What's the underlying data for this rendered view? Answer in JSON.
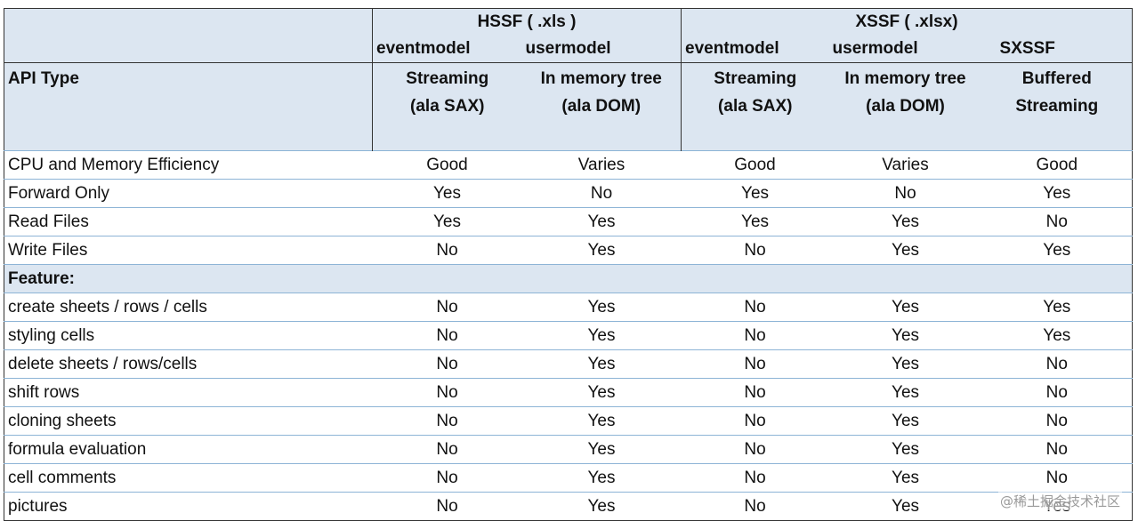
{
  "header": {
    "hssf_label": "HSSF ( .xls )",
    "xssf_label": "XSSF ( .xlsx)",
    "sub_labels": [
      "eventmodel",
      "usermodel",
      "eventmodel",
      "usermodel",
      "SXSSF"
    ],
    "api_type_label": "API Type",
    "api_types": [
      [
        "Streaming",
        "(ala SAX)"
      ],
      [
        "In memory tree",
        "(ala DOM)"
      ],
      [
        "Streaming",
        "(ala SAX)"
      ],
      [
        "In memory tree",
        "(ala DOM)"
      ],
      [
        "Buffered",
        "Streaming"
      ]
    ]
  },
  "rows": [
    {
      "label": "CPU and Memory Efficiency",
      "values": [
        "Good",
        "Varies",
        "Good",
        "Varies",
        "Good"
      ]
    },
    {
      "label": "Forward Only",
      "values": [
        "Yes",
        "No",
        "Yes",
        "No",
        "Yes"
      ]
    },
    {
      "label": "Read Files",
      "values": [
        "Yes",
        "Yes",
        "Yes",
        "Yes",
        "No"
      ]
    },
    {
      "label": "Write Files",
      "values": [
        "No",
        "Yes",
        "No",
        "Yes",
        "Yes"
      ]
    }
  ],
  "feature_label": "Feature:",
  "features": [
    {
      "label": "create sheets / rows / cells",
      "values": [
        "No",
        "Yes",
        "No",
        "Yes",
        "Yes"
      ]
    },
    {
      "label": "styling cells",
      "values": [
        "No",
        "Yes",
        "No",
        "Yes",
        "Yes"
      ]
    },
    {
      "label": "delete sheets / rows/cells",
      "values": [
        "No",
        "Yes",
        "No",
        "Yes",
        "No"
      ]
    },
    {
      "label": "shift rows",
      "values": [
        "No",
        "Yes",
        "No",
        "Yes",
        "No"
      ]
    },
    {
      "label": "cloning sheets",
      "values": [
        "No",
        "Yes",
        "No",
        "Yes",
        "No"
      ]
    },
    {
      "label": "formula evaluation",
      "values": [
        "No",
        "Yes",
        "No",
        "Yes",
        "No"
      ]
    },
    {
      "label": "cell comments",
      "values": [
        "No",
        "Yes",
        "No",
        "Yes",
        "No"
      ]
    },
    {
      "label": "pictures",
      "values": [
        "No",
        "Yes",
        "No",
        "Yes",
        "Yes"
      ]
    }
  ],
  "watermark": "@稀土掘金技术社区",
  "colors": {
    "header_bg": "#dce6f1",
    "grid_line": "#8db4d6"
  }
}
